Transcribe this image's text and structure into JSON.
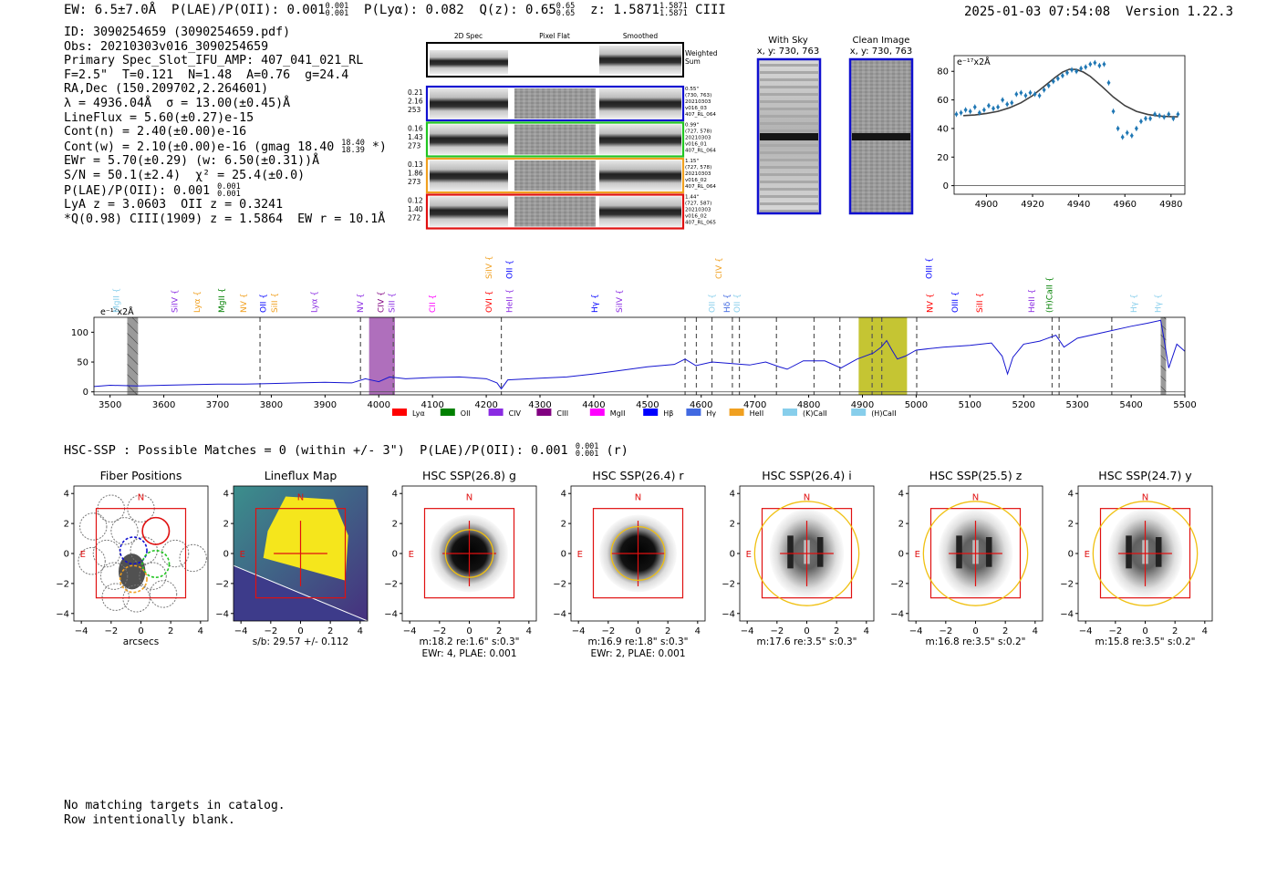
{
  "header": {
    "ew": "EW: 6.5±7.0Å",
    "plae": "P(LAE)/P(OII): 0.001",
    "plae_hi": "0.001",
    "plae_lo": "0.001",
    "plya": "P(Lyα): 0.082",
    "qz": "Q(z): 0.65",
    "qz_hi": "0.65",
    "qz_lo": "0.65",
    "z": "z: 1.5871",
    "z_hi": "1.5871",
    "z_lo": "1.5871",
    "line": "CIII",
    "datetime": "2025-01-03 07:54:08",
    "version": "Version 1.22.3"
  },
  "info": {
    "id": "ID: 3090254659 (3090254659.pdf)",
    "obs": "Obs: 20210303v016_3090254659",
    "slot": "Primary Spec_Slot_IFU_AMP: 407_041_021_RL",
    "params": "F=2.5\"  T=0.121  N=1.48  A=0.76  g=24.4",
    "radec": "RA,Dec (150.209702,2.264601)",
    "lambda": "λ = 4936.04Å  σ = 13.00(±0.45)Å",
    "lineflux": "LineFlux = 5.60(±0.27)e-15",
    "contn": "Cont(n) = 2.40(±0.00)e-16",
    "contw": "Cont(w) = 2.10(±0.00)e-16 (gmag 18.40",
    "gmag_hi": "18.40",
    "gmag_lo": "18.39",
    "contw_tail": " *)",
    "ewr": "EWr = 5.70(±0.29) (w: 6.50(±0.31))Å",
    "sn": "S/N = 50.1(±2.4)  χ² = 25.4(±0.0)",
    "plae": "P(LAE)/P(OII): 0.001",
    "plae_hi": "0.001",
    "plae_lo": "0.001",
    "lya": "LyA z = 3.0603  OII z = 0.3241",
    "ciii": "*Q(0.98) CIII(1909) z = 1.5864  EW r = 10.1Å"
  },
  "cutouts": {
    "headers": [
      "2D Spec",
      "Pixel Flat",
      "Smoothed"
    ],
    "weighted_sum": [
      "Weighted",
      "Sum"
    ],
    "rows": [
      {
        "color": "#1010d0",
        "left": [
          "0.21",
          "2.16",
          "253"
        ],
        "right": [
          "0.55\"",
          "(730, 763)",
          "20210303",
          "v016_03",
          "407_RL_064"
        ]
      },
      {
        "color": "#22c522",
        "left": [
          "0.16",
          "1.43",
          "273"
        ],
        "right": [
          "0.99\"",
          "(727, 578)",
          "20210303",
          "v016_01",
          "407_RL_064"
        ]
      },
      {
        "color": "#f0a020",
        "left": [
          "0.13",
          "1.86",
          "273"
        ],
        "right": [
          "1.15\"",
          "(727, 578)",
          "20210303",
          "v016_02",
          "407_RL_064"
        ]
      },
      {
        "color": "#e01010",
        "left": [
          "0.12",
          "1.40",
          "272"
        ],
        "right": [
          "1.44\"",
          "(727, 587)",
          "20210303",
          "v016_02",
          "407_RL_065"
        ]
      }
    ],
    "with_sky": [
      "With Sky",
      "x, y: 730, 763"
    ],
    "clean": [
      "Clean Image",
      "x, y: 730, 763"
    ]
  },
  "chart_data": [
    {
      "type": "scatter",
      "name": "line-fit",
      "title": "",
      "ylabel_units": "e⁻¹⁷x2Å",
      "xlim": [
        4886,
        4986
      ],
      "ylim": [
        -6,
        91
      ],
      "xticks": [
        4900,
        4920,
        4940,
        4960,
        4980
      ],
      "yticks": [
        0,
        20,
        40,
        60,
        80
      ],
      "series": [
        {
          "name": "data",
          "x": [
            4887,
            4889,
            4891,
            4893,
            4895,
            4897,
            4899,
            4901,
            4903,
            4905,
            4907,
            4909,
            4911,
            4913,
            4915,
            4917,
            4919,
            4921,
            4923,
            4925,
            4927,
            4929,
            4931,
            4933,
            4935,
            4937,
            4939,
            4941,
            4943,
            4945,
            4947,
            4949,
            4951,
            4953,
            4955,
            4957,
            4959,
            4961,
            4963,
            4965,
            4967,
            4969,
            4971,
            4973,
            4975,
            4977,
            4979,
            4981,
            4983
          ],
          "y": [
            50,
            51,
            53,
            52,
            55,
            51,
            53,
            56,
            54,
            55,
            60,
            57,
            58,
            64,
            65,
            63,
            65,
            64,
            63,
            67,
            70,
            73,
            75,
            77,
            79,
            81,
            80,
            82,
            83,
            85,
            86,
            84,
            85,
            72,
            52,
            40,
            34,
            37,
            35,
            40,
            45,
            47,
            47,
            50,
            49,
            48,
            50,
            47,
            50
          ]
        },
        {
          "name": "model",
          "x": [
            4890,
            4895,
            4900,
            4905,
            4910,
            4915,
            4920,
            4925,
            4930,
            4933,
            4936,
            4939,
            4942,
            4945,
            4950,
            4955,
            4960,
            4965,
            4970,
            4975,
            4980,
            4983
          ],
          "y": [
            49,
            49.5,
            50.5,
            52,
            54.5,
            58,
            63,
            69.5,
            76,
            79.5,
            81.5,
            81.3,
            79.5,
            76.5,
            69.5,
            62,
            56,
            52,
            49.8,
            48.7,
            48.3,
            48.2
          ]
        }
      ]
    },
    {
      "type": "line",
      "name": "full-spectrum",
      "ylabel_units": "e⁻¹⁷x2Å",
      "xlim": [
        3470,
        5500
      ],
      "ylim": [
        -5,
        125
      ],
      "xticks": [
        3500,
        3600,
        3700,
        3800,
        3900,
        4000,
        4100,
        4200,
        4300,
        4400,
        4500,
        4600,
        4700,
        4800,
        4900,
        5000,
        5100,
        5200,
        5300,
        5400,
        5500
      ],
      "yticks": [
        0,
        50,
        100
      ],
      "x": [
        3470,
        3500,
        3550,
        3600,
        3650,
        3700,
        3750,
        3800,
        3850,
        3900,
        3950,
        3975,
        3990,
        4000,
        4020,
        4050,
        4100,
        4150,
        4200,
        4220,
        4228,
        4240,
        4300,
        4350,
        4400,
        4450,
        4500,
        4550,
        4570,
        4590,
        4620,
        4650,
        4690,
        4720,
        4745,
        4760,
        4790,
        4830,
        4860,
        4890,
        4920,
        4935,
        4945,
        4955,
        4965,
        4980,
        5000,
        5050,
        5100,
        5140,
        5160,
        5170,
        5180,
        5200,
        5230,
        5260,
        5275,
        5300,
        5350,
        5400,
        5430,
        5455,
        5460,
        5470,
        5485,
        5500
      ],
      "y": [
        9,
        11,
        10,
        11,
        12,
        13,
        13,
        14,
        15,
        16,
        15,
        22,
        19,
        17,
        25,
        22,
        24,
        25,
        22,
        15,
        5,
        20,
        23,
        25,
        30,
        36,
        42,
        46,
        55,
        44,
        50,
        48,
        45,
        50,
        42,
        38,
        52,
        52,
        40,
        55,
        65,
        75,
        86,
        70,
        55,
        60,
        70,
        75,
        78,
        82,
        60,
        30,
        58,
        80,
        85,
        95,
        75,
        90,
        100,
        110,
        115,
        120,
        95,
        40,
        80,
        68
      ],
      "line_labels": [
        {
          "label": "MgII",
          "x": 3512,
          "color": "#87ceeb"
        },
        {
          "label": "SiIV",
          "x": 3620,
          "color": "#8a2be2"
        },
        {
          "label": "Lyα",
          "x": 3662,
          "color": "#f0a020"
        },
        {
          "label": "MgII",
          "x": 3708,
          "color": "#008000"
        },
        {
          "label": "NV",
          "x": 3748,
          "color": "#f0a020"
        },
        {
          "label": "OII",
          "x": 3785,
          "color": "#0000ff"
        },
        {
          "label": "SiII",
          "x": 3806,
          "color": "#f0a020"
        },
        {
          "label": "Lyα",
          "x": 3880,
          "color": "#8a2be2"
        },
        {
          "label": "NV",
          "x": 3966,
          "color": "#8a2be2"
        },
        {
          "label": "CIV",
          "x": 4004,
          "color": "#800080"
        },
        {
          "label": "SiII",
          "x": 4024,
          "color": "#8a2be2"
        },
        {
          "label": "CII",
          "x": 4100,
          "color": "#ff00ff"
        },
        {
          "label": "OVI",
          "x": 4205,
          "color": "#ff0000"
        },
        {
          "label": "SiIV",
          "x": 4205,
          "color": "#f0a020",
          "row": 2
        },
        {
          "label": "HeII",
          "x": 4243,
          "color": "#8a2be2"
        },
        {
          "label": "OII",
          "x": 4243,
          "color": "#0000ff",
          "row": 2
        },
        {
          "label": "Hγ",
          "x": 4402,
          "color": "#0000ff"
        },
        {
          "label": "SiIV",
          "x": 4448,
          "color": "#8a2be2"
        },
        {
          "label": "CIV",
          "x": 4633,
          "color": "#f0a020",
          "row": 2
        },
        {
          "label": "OII",
          "x": 4620,
          "color": "#87ceeb"
        },
        {
          "label": "Hδ",
          "x": 4648,
          "color": "#4169e1"
        },
        {
          "label": "OII",
          "x": 4667,
          "color": "#87ceeb"
        },
        {
          "label": "OIII",
          "x": 5024,
          "color": "#0000ff",
          "row": 2
        },
        {
          "label": "NV",
          "x": 5026,
          "color": "#ff0000"
        },
        {
          "label": "OIII",
          "x": 5072,
          "color": "#0000ff"
        },
        {
          "label": "SiII",
          "x": 5118,
          "color": "#ff0000"
        },
        {
          "label": "HeII",
          "x": 5215,
          "color": "#8a2be2"
        },
        {
          "label": "(H)CaII",
          "x": 5248,
          "color": "#008000"
        },
        {
          "label": "Hγ",
          "x": 5405,
          "color": "#87ceeb"
        },
        {
          "label": "Hγ",
          "x": 5450,
          "color": "#87ceeb"
        }
      ],
      "dashed_lines": [
        3779,
        3966,
        4027,
        4228,
        4570,
        4591,
        4620,
        4658,
        4671,
        4740,
        4810,
        4858,
        4918,
        4936,
        5001,
        5253,
        5266,
        5364
      ],
      "shaded": [
        {
          "x0": 3532,
          "x1": 3552,
          "color": "#808080",
          "hatch": true
        },
        {
          "x0": 3982,
          "x1": 4030,
          "color": "#9b4bab"
        },
        {
          "x0": 4893,
          "x1": 4983,
          "color": "#b6b600"
        },
        {
          "x0": 5455,
          "x1": 5465,
          "color": "#808080",
          "hatch": true
        }
      ],
      "legend": [
        {
          "label": "Lyα",
          "color": "#ff0000"
        },
        {
          "label": "OII",
          "color": "#008000"
        },
        {
          "label": "CIV",
          "color": "#8a2be2"
        },
        {
          "label": "CIII",
          "color": "#800080"
        },
        {
          "label": "MgII",
          "color": "#ff00ff"
        },
        {
          "label": "Hβ",
          "color": "#0000ff"
        },
        {
          "label": "Hγ",
          "color": "#4169e1"
        },
        {
          "label": "HeII",
          "color": "#f0a020"
        },
        {
          "label": "(K)CaII",
          "color": "#87ceeb"
        },
        {
          "label": "(H)CaII",
          "color": "#87ceeb"
        }
      ]
    }
  ],
  "hsc": {
    "title": "HSC-SSP : Possible Matches = 0 (within +/- 3\")  P(LAE)/P(OII): 0.001",
    "title_hi": "0.001",
    "title_lo": "0.001",
    "title_tail": " (r)",
    "axis_ticks": [
      "−4",
      "−2",
      "0",
      "2",
      "4"
    ],
    "compass_n": "N",
    "compass_e": "E",
    "panels": [
      {
        "title": "Fiber Positions",
        "xlabel": "arcsecs",
        "xlabel2": "",
        "kind": "fiber"
      },
      {
        "title": "Lineflux Map",
        "xlabel": "s/b: 29.57 +/- 0.112",
        "xlabel2": "",
        "kind": "lineflux"
      },
      {
        "title": "HSC SSP(26.8) g",
        "xlabel": "m:18.2  re:1.6\"  s:0.3\"",
        "xlabel2": "EWr: 4, PLAE: 0.001",
        "kind": "blob",
        "aperture_r": 1.6
      },
      {
        "title": "HSC SSP(26.4) r",
        "xlabel": "m:16.9  re:1.8\"  s:0.3\"",
        "xlabel2": "EWr: 2, PLAE: 0.001",
        "kind": "blob",
        "aperture_r": 1.8
      },
      {
        "title": "HSC SSP(26.4) i",
        "xlabel": "m:17.6  re:3.5\"  s:0.3\"",
        "xlabel2": "",
        "kind": "ring",
        "aperture_r": 3.5
      },
      {
        "title": "HSC SSP(25.5) z",
        "xlabel": "m:16.8  re:3.5\"  s:0.2\"",
        "xlabel2": "",
        "kind": "ring",
        "aperture_r": 3.5
      },
      {
        "title": "HSC SSP(24.7) y",
        "xlabel": "m:15.8  re:3.5\"  s:0.2\"",
        "xlabel2": "",
        "kind": "ring",
        "aperture_r": 3.5
      }
    ]
  },
  "footer": {
    "line1": "No matching targets in catalog.",
    "line2": "Row intentionally blank."
  }
}
